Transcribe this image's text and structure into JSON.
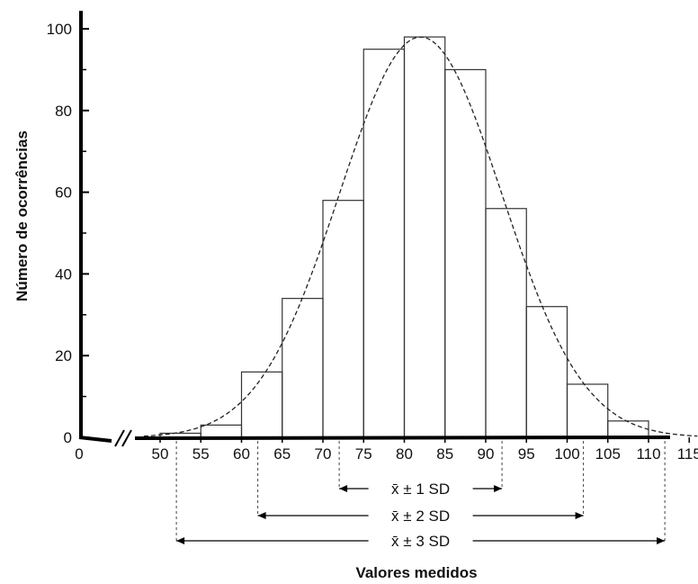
{
  "chart_data": {
    "type": "bar",
    "subtype": "histogram",
    "xlabel": "Valores medidos",
    "ylabel": "Número de ocorrências",
    "ylim": [
      0,
      100
    ],
    "y_ticks": [
      0,
      20,
      40,
      60,
      80,
      100
    ],
    "x_ticks": [
      0,
      50,
      55,
      60,
      65,
      70,
      75,
      80,
      85,
      90,
      95,
      100,
      105,
      110,
      115
    ],
    "x_axis_break": "//",
    "bins": [
      {
        "start": 50,
        "end": 55,
        "value": 1
      },
      {
        "start": 55,
        "end": 60,
        "value": 3
      },
      {
        "start": 60,
        "end": 65,
        "value": 16
      },
      {
        "start": 65,
        "end": 70,
        "value": 34
      },
      {
        "start": 70,
        "end": 75,
        "value": 58
      },
      {
        "start": 75,
        "end": 80,
        "value": 95
      },
      {
        "start": 80,
        "end": 85,
        "value": 98
      },
      {
        "start": 85,
        "end": 90,
        "value": 90
      },
      {
        "start": 90,
        "end": 95,
        "value": 56
      },
      {
        "start": 95,
        "end": 100,
        "value": 32
      },
      {
        "start": 100,
        "end": 105,
        "value": 13
      },
      {
        "start": 105,
        "end": 110,
        "value": 4
      }
    ],
    "normal_curve": {
      "mean": 82,
      "sd": 10,
      "peak": 98,
      "style": "dashed"
    },
    "sd_ranges": [
      {
        "label": "x̄ ± 1 SD",
        "low": 72,
        "high": 92
      },
      {
        "label": "x̄ ± 2 SD",
        "low": 62,
        "high": 102
      },
      {
        "label": "x̄ ± 3 SD",
        "low": 52,
        "high": 112
      }
    ]
  }
}
